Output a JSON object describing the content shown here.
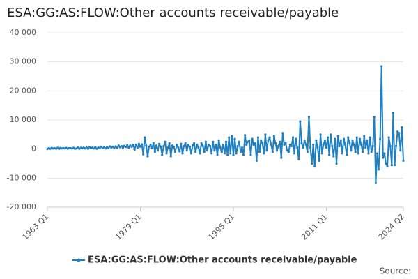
{
  "chart_data": {
    "type": "line",
    "title": "ESA:GG:AS:FLOW:Other accounts receivable/payable",
    "source": "Source:",
    "legend": "bottom",
    "grid": true,
    "ylim": [
      -20000,
      40000
    ],
    "yticks": [
      {
        "value": -20000,
        "label": "-20 000"
      },
      {
        "value": -10000,
        "label": "-10 000"
      },
      0,
      {
        "value": 10000,
        "label": "10 000"
      },
      {
        "value": 20000,
        "label": "20 000"
      },
      {
        "value": 30000,
        "label": "30 000"
      },
      {
        "value": 40000,
        "label": "40 000"
      }
    ],
    "categories": [
      "1963 Q1",
      null,
      null,
      null,
      null,
      null,
      null,
      null,
      null,
      null,
      null,
      null,
      null,
      null,
      null,
      null,
      null,
      null,
      null,
      null,
      null,
      null,
      null,
      null,
      null,
      null,
      null,
      null,
      null,
      null,
      null,
      null,
      null,
      null,
      null,
      null,
      null,
      null,
      null,
      null,
      null,
      null,
      null,
      null,
      null,
      null,
      null,
      null,
      null,
      null,
      null,
      null,
      null,
      null,
      null,
      null,
      null,
      null,
      null,
      null,
      null,
      null,
      null,
      null,
      "1979 Q1",
      null,
      null,
      null,
      null,
      null,
      null,
      null,
      null,
      null,
      null,
      null,
      null,
      null,
      null,
      null,
      null,
      null,
      null,
      null,
      null,
      null,
      null,
      null,
      null,
      null,
      null,
      null,
      null,
      null,
      null,
      null,
      null,
      null,
      null,
      null,
      null,
      null,
      null,
      null,
      null,
      null,
      null,
      null,
      null,
      null,
      null,
      null,
      null,
      null,
      null,
      null,
      null,
      null,
      null,
      null,
      null,
      null,
      null,
      null,
      null,
      null,
      null,
      null,
      "1995 Q1",
      null,
      null,
      null,
      null,
      null,
      null,
      null,
      null,
      null,
      null,
      null,
      null,
      null,
      null,
      null,
      null,
      null,
      null,
      null,
      null,
      null,
      null,
      null,
      null,
      null,
      null,
      null,
      null,
      null,
      null,
      null,
      null,
      null,
      null,
      null,
      null,
      null,
      null,
      null,
      null,
      null,
      null,
      null,
      null,
      null,
      null,
      null,
      null,
      null,
      null,
      null,
      null,
      null,
      null,
      null,
      null,
      null,
      null,
      null,
      null,
      null,
      null,
      null,
      "2011 Q1",
      null,
      null,
      null,
      null,
      null,
      null,
      null,
      null,
      null,
      null,
      null,
      null,
      null,
      null,
      null,
      null,
      null,
      null,
      null,
      null,
      null,
      null,
      null,
      null,
      null,
      null,
      null,
      null,
      null,
      null,
      null,
      null,
      null,
      null,
      null,
      null,
      null,
      null,
      null,
      null,
      null,
      null,
      null,
      null,
      null,
      null,
      null,
      null,
      null,
      null,
      null,
      null,
      "2024 Q2"
    ],
    "series": [
      {
        "name": "ESA:GG:AS:FLOW:Other accounts receivable/payable",
        "color": "#1f7fc0",
        "values": [
          0,
          300,
          100,
          400,
          200,
          300,
          100,
          400,
          100,
          400,
          200,
          300,
          200,
          400,
          100,
          300,
          300,
          200,
          400,
          100,
          200,
          500,
          100,
          400,
          300,
          500,
          200,
          600,
          100,
          600,
          300,
          500,
          200,
          700,
          100,
          500,
          400,
          800,
          300,
          600,
          200,
          700,
          400,
          900,
          500,
          800,
          300,
          900,
          400,
          1200,
          600,
          1000,
          300,
          1100,
          700,
          1300,
          500,
          1200,
          800,
          1500,
          -200,
          1500,
          400,
          1800,
          800,
          1600,
          -1800,
          4000,
          1200,
          -2500,
          800,
          1500,
          300,
          2000,
          -1000,
          1200,
          -500,
          1800,
          800,
          -2000,
          1000,
          2500,
          -1500,
          500,
          2000,
          -2500,
          1200,
          800,
          -1000,
          1500,
          600,
          -800,
          1800,
          -1500,
          1000,
          2000,
          -500,
          1500,
          800,
          -1500,
          1200,
          2000,
          -1000,
          1500,
          500,
          -1500,
          2000,
          1000,
          -1000,
          2500,
          -500,
          1500,
          1000,
          -1500,
          2500,
          -500,
          1500,
          -2000,
          3000,
          500,
          -1000,
          1500,
          -1500,
          2500,
          -2000,
          4000,
          -1500,
          4500,
          -2000,
          3500,
          -1500,
          1000,
          2500,
          -1000,
          500,
          -2000,
          4800,
          1500,
          2500,
          3000,
          -2000,
          3500,
          1500,
          2000,
          -4000,
          4000,
          -1000,
          3000,
          2000,
          -1500,
          5000,
          -500,
          3000,
          4000,
          1500,
          -1000,
          4500,
          2000,
          -500,
          1000,
          2500,
          -3000,
          5500,
          1500,
          2000,
          -500,
          -1000,
          1500,
          1000,
          4000,
          -1500,
          3500,
          500,
          -3500,
          9500,
          2000,
          500,
          3000,
          1500,
          -1000,
          11000,
          500,
          -5000,
          1500,
          -6000,
          3000,
          500,
          -4000,
          5000,
          -1500,
          1500,
          3000,
          500,
          4000,
          -2000,
          5000,
          1000,
          -2500,
          3500,
          -5000,
          4500,
          1000,
          3000,
          -1500,
          3500,
          1500,
          -2000,
          4000,
          2000,
          -500,
          3000,
          1500,
          -1000,
          4000,
          -1500,
          3500,
          1500,
          -1000,
          4500,
          500,
          3000,
          -1500,
          4000,
          -1000,
          1000,
          11000,
          -11700,
          -1500,
          -7000,
          3500,
          28500,
          -3000,
          -1500,
          -5000,
          -6000,
          4000,
          1000,
          -5500,
          12500,
          -5500,
          1000,
          6000,
          5500,
          -500,
          7500,
          -4000
        ]
      }
    ]
  }
}
